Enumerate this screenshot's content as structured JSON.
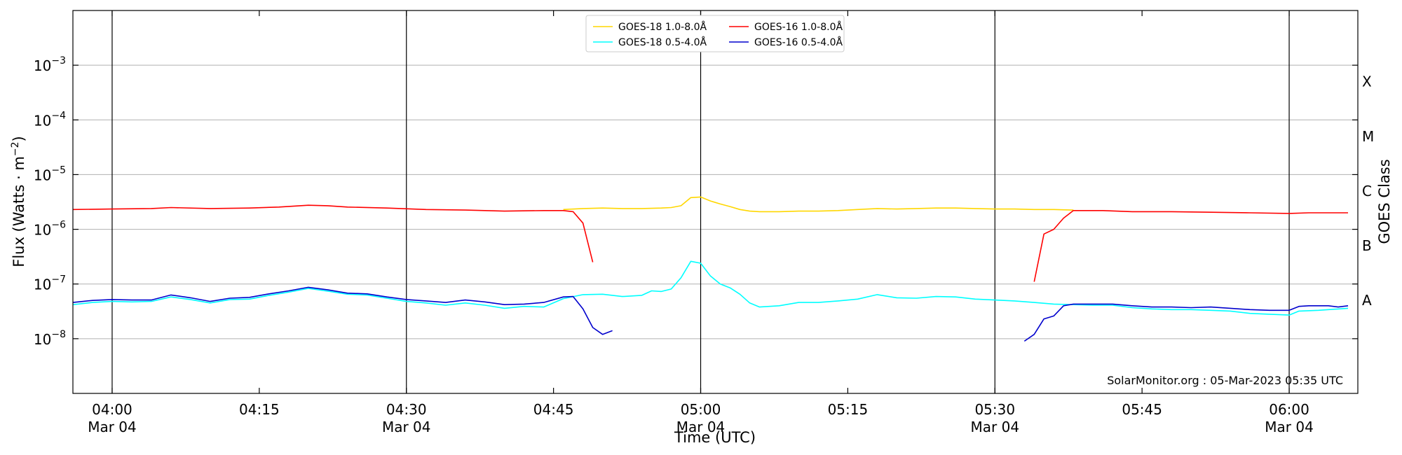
{
  "chart_data": {
    "type": "line",
    "title": "",
    "xlabel": "Time (UTC)",
    "ylabel": "Flux (Watts · m",
    "ylabel_sup": "−2",
    "ylabel_close": ")",
    "right_label": "GOES Class",
    "y_scale": "log",
    "ylim": [
      1e-09,
      0.01
    ],
    "xlim": [
      "03:56",
      "06:07"
    ],
    "grid": "horizontal at decades",
    "legend_position": "top-center",
    "watermark": "SolarMonitor.org : 05-Mar-2023 05:35 UTC",
    "x_ticks": [
      {
        "time": "04:00",
        "date": "Mar 04"
      },
      {
        "time": "04:15",
        "date": ""
      },
      {
        "time": "04:30",
        "date": "Mar 04"
      },
      {
        "time": "04:45",
        "date": ""
      },
      {
        "time": "05:00",
        "date": "Mar 04"
      },
      {
        "time": "05:15",
        "date": ""
      },
      {
        "time": "05:30",
        "date": "Mar 04"
      },
      {
        "time": "05:45",
        "date": ""
      },
      {
        "time": "06:00",
        "date": "Mar 04"
      }
    ],
    "vertical_lines": [
      "04:00",
      "04:30",
      "05:00",
      "05:30",
      "06:00"
    ],
    "y_ticks": [
      {
        "value": 1e-08,
        "base": "10",
        "exp": "−8"
      },
      {
        "value": 1e-07,
        "base": "10",
        "exp": "−7"
      },
      {
        "value": 1e-06,
        "base": "10",
        "exp": "−6"
      },
      {
        "value": 1e-05,
        "base": "10",
        "exp": "−5"
      },
      {
        "value": 0.0001,
        "base": "10",
        "exp": "−4"
      },
      {
        "value": 0.001,
        "base": "10",
        "exp": "−3"
      }
    ],
    "goes_classes": [
      {
        "label": "A",
        "value": 5e-08
      },
      {
        "label": "B",
        "value": 5e-07
      },
      {
        "label": "C",
        "value": 5e-06
      },
      {
        "label": "M",
        "value": 5e-05
      },
      {
        "label": "X",
        "value": 0.0005
      }
    ],
    "series": [
      {
        "name": "GOES-18 1.0-8.0Å",
        "color": "#ffd700",
        "points": [
          [
            "04:46",
            2.3e-06
          ],
          [
            "04:48",
            2.4e-06
          ],
          [
            "04:50",
            2.45e-06
          ],
          [
            "04:52",
            2.4e-06
          ],
          [
            "04:54",
            2.4e-06
          ],
          [
            "04:56",
            2.45e-06
          ],
          [
            "04:57",
            2.5e-06
          ],
          [
            "04:58",
            2.7e-06
          ],
          [
            "04:59",
            3.8e-06
          ],
          [
            "05:00",
            3.9e-06
          ],
          [
            "05:01",
            3.3e-06
          ],
          [
            "05:02",
            2.9e-06
          ],
          [
            "05:03",
            2.6e-06
          ],
          [
            "05:04",
            2.3e-06
          ],
          [
            "05:05",
            2.15e-06
          ],
          [
            "05:06",
            2.1e-06
          ],
          [
            "05:08",
            2.1e-06
          ],
          [
            "05:10",
            2.15e-06
          ],
          [
            "05:12",
            2.15e-06
          ],
          [
            "05:14",
            2.2e-06
          ],
          [
            "05:16",
            2.3e-06
          ],
          [
            "05:18",
            2.4e-06
          ],
          [
            "05:20",
            2.35e-06
          ],
          [
            "05:22",
            2.4e-06
          ],
          [
            "05:24",
            2.45e-06
          ],
          [
            "05:26",
            2.45e-06
          ],
          [
            "05:28",
            2.4e-06
          ],
          [
            "05:30",
            2.35e-06
          ],
          [
            "05:32",
            2.35e-06
          ],
          [
            "05:34",
            2.3e-06
          ],
          [
            "05:36",
            2.3e-06
          ],
          [
            "05:38",
            2.25e-06
          ]
        ]
      },
      {
        "name": "GOES-18 0.5-4.0Å",
        "color": "#00ffff",
        "points": [
          [
            "03:56",
            4.2e-08
          ],
          [
            "03:58",
            4.6e-08
          ],
          [
            "04:00",
            4.8e-08
          ],
          [
            "04:02",
            4.7e-08
          ],
          [
            "04:04",
            4.8e-08
          ],
          [
            "04:06",
            5.8e-08
          ],
          [
            "04:08",
            5.2e-08
          ],
          [
            "04:10",
            4.5e-08
          ],
          [
            "04:12",
            5.2e-08
          ],
          [
            "04:14",
            5.3e-08
          ],
          [
            "04:16",
            6.2e-08
          ],
          [
            "04:18",
            7.1e-08
          ],
          [
            "04:20",
            8.3e-08
          ],
          [
            "04:22",
            7.4e-08
          ],
          [
            "04:24",
            6.5e-08
          ],
          [
            "04:26",
            6.3e-08
          ],
          [
            "04:28",
            5.5e-08
          ],
          [
            "04:30",
            4.8e-08
          ],
          [
            "04:32",
            4.5e-08
          ],
          [
            "04:34",
            4.1e-08
          ],
          [
            "04:36",
            4.5e-08
          ],
          [
            "04:38",
            4.1e-08
          ],
          [
            "04:40",
            3.6e-08
          ],
          [
            "04:42",
            3.9e-08
          ],
          [
            "04:44",
            3.8e-08
          ],
          [
            "04:46",
            5.4e-08
          ],
          [
            "04:48",
            6.4e-08
          ],
          [
            "04:50",
            6.5e-08
          ],
          [
            "04:52",
            5.9e-08
          ],
          [
            "04:54",
            6.2e-08
          ],
          [
            "04:55",
            7.5e-08
          ],
          [
            "04:56",
            7.3e-08
          ],
          [
            "04:57",
            8.1e-08
          ],
          [
            "04:58",
            1.3e-07
          ],
          [
            "04:59",
            2.6e-07
          ],
          [
            "05:00",
            2.4e-07
          ],
          [
            "05:01",
            1.4e-07
          ],
          [
            "05:02",
            1e-07
          ],
          [
            "05:03",
            8.5e-08
          ],
          [
            "05:04",
            6.5e-08
          ],
          [
            "05:05",
            4.5e-08
          ],
          [
            "05:06",
            3.8e-08
          ],
          [
            "05:08",
            4e-08
          ],
          [
            "05:10",
            4.6e-08
          ],
          [
            "05:12",
            4.6e-08
          ],
          [
            "05:14",
            4.9e-08
          ],
          [
            "05:16",
            5.3e-08
          ],
          [
            "05:18",
            6.4e-08
          ],
          [
            "05:20",
            5.6e-08
          ],
          [
            "05:22",
            5.5e-08
          ],
          [
            "05:24",
            5.9e-08
          ],
          [
            "05:26",
            5.8e-08
          ],
          [
            "05:28",
            5.3e-08
          ],
          [
            "05:30",
            5.1e-08
          ],
          [
            "05:32",
            4.9e-08
          ],
          [
            "05:34",
            4.6e-08
          ],
          [
            "05:36",
            4.3e-08
          ],
          [
            "05:38",
            4.2e-08
          ],
          [
            "05:40",
            4.1e-08
          ],
          [
            "05:42",
            4.1e-08
          ],
          [
            "05:44",
            3.7e-08
          ],
          [
            "05:46",
            3.5e-08
          ],
          [
            "05:48",
            3.4e-08
          ],
          [
            "05:50",
            3.4e-08
          ],
          [
            "05:52",
            3.3e-08
          ],
          [
            "05:54",
            3.2e-08
          ],
          [
            "05:56",
            2.9e-08
          ],
          [
            "05:58",
            2.8e-08
          ],
          [
            "06:00",
            2.7e-08
          ],
          [
            "06:01",
            3.2e-08
          ],
          [
            "06:03",
            3.3e-08
          ],
          [
            "06:06",
            3.6e-08
          ]
        ]
      },
      {
        "name": "GOES-16 1.0-8.0Å",
        "color": "#ff0000",
        "segments": [
          [
            [
              "03:56",
              2.3e-06
            ],
            [
              "04:00",
              2.35e-06
            ],
            [
              "04:04",
              2.4e-06
            ],
            [
              "04:06",
              2.5e-06
            ],
            [
              "04:10",
              2.4e-06
            ],
            [
              "04:14",
              2.45e-06
            ],
            [
              "04:17",
              2.55e-06
            ],
            [
              "04:20",
              2.75e-06
            ],
            [
              "04:22",
              2.7e-06
            ],
            [
              "04:24",
              2.55e-06
            ],
            [
              "04:28",
              2.45e-06
            ],
            [
              "04:32",
              2.3e-06
            ],
            [
              "04:36",
              2.25e-06
            ],
            [
              "04:40",
              2.15e-06
            ],
            [
              "04:44",
              2.2e-06
            ],
            [
              "04:46",
              2.2e-06
            ],
            [
              "04:47",
              2.1e-06
            ],
            [
              "04:48",
              1.3e-06
            ],
            [
              "04:49",
              2.5e-07
            ]
          ],
          [
            [
              "05:34",
              1.1e-07
            ],
            [
              "05:35",
              8.2e-07
            ],
            [
              "05:36",
              1e-06
            ],
            [
              "05:37",
              1.6e-06
            ],
            [
              "05:38",
              2.2e-06
            ],
            [
              "05:41",
              2.2e-06
            ],
            [
              "05:44",
              2.1e-06
            ],
            [
              "05:48",
              2.1e-06
            ],
            [
              "05:52",
              2.05e-06
            ],
            [
              "05:56",
              2e-06
            ],
            [
              "06:00",
              1.95e-06
            ],
            [
              "06:02",
              2e-06
            ],
            [
              "06:06",
              2e-06
            ]
          ]
        ]
      },
      {
        "name": "GOES-16 0.5-4.0Å",
        "color": "#0000cd",
        "segments": [
          [
            [
              "03:56",
              4.6e-08
            ],
            [
              "03:58",
              5e-08
            ],
            [
              "04:00",
              5.2e-08
            ],
            [
              "04:02",
              5.1e-08
            ],
            [
              "04:04",
              5.1e-08
            ],
            [
              "04:06",
              6.3e-08
            ],
            [
              "04:08",
              5.6e-08
            ],
            [
              "04:10",
              4.8e-08
            ],
            [
              "04:12",
              5.5e-08
            ],
            [
              "04:14",
              5.7e-08
            ],
            [
              "04:16",
              6.6e-08
            ],
            [
              "04:18",
              7.5e-08
            ],
            [
              "04:20",
              8.7e-08
            ],
            [
              "04:22",
              7.8e-08
            ],
            [
              "04:24",
              6.8e-08
            ],
            [
              "04:26",
              6.6e-08
            ],
            [
              "04:28",
              5.8e-08
            ],
            [
              "04:30",
              5.2e-08
            ],
            [
              "04:32",
              4.9e-08
            ],
            [
              "04:34",
              4.6e-08
            ],
            [
              "04:36",
              5.1e-08
            ],
            [
              "04:38",
              4.7e-08
            ],
            [
              "04:40",
              4.2e-08
            ],
            [
              "04:42",
              4.3e-08
            ],
            [
              "04:44",
              4.6e-08
            ],
            [
              "04:46",
              5.8e-08
            ],
            [
              "04:47",
              5.9e-08
            ],
            [
              "04:48",
              3.5e-08
            ],
            [
              "04:49",
              1.6e-08
            ],
            [
              "04:50",
              1.2e-08
            ],
            [
              "04:51",
              1.4e-08
            ]
          ],
          [
            [
              "05:33",
              9e-09
            ],
            [
              "05:34",
              1.2e-08
            ],
            [
              "05:35",
              2.3e-08
            ],
            [
              "05:36",
              2.6e-08
            ],
            [
              "05:37",
              4e-08
            ],
            [
              "05:38",
              4.3e-08
            ],
            [
              "05:40",
              4.3e-08
            ],
            [
              "05:42",
              4.3e-08
            ],
            [
              "05:44",
              4e-08
            ],
            [
              "05:46",
              3.8e-08
            ],
            [
              "05:48",
              3.8e-08
            ],
            [
              "05:50",
              3.7e-08
            ],
            [
              "05:52",
              3.8e-08
            ],
            [
              "05:54",
              3.6e-08
            ],
            [
              "05:56",
              3.4e-08
            ],
            [
              "05:58",
              3.3e-08
            ],
            [
              "06:00",
              3.3e-08
            ],
            [
              "06:01",
              3.9e-08
            ],
            [
              "06:02",
              4e-08
            ],
            [
              "06:04",
              4e-08
            ],
            [
              "06:05",
              3.8e-08
            ],
            [
              "06:06",
              4e-08
            ]
          ]
        ]
      }
    ]
  }
}
